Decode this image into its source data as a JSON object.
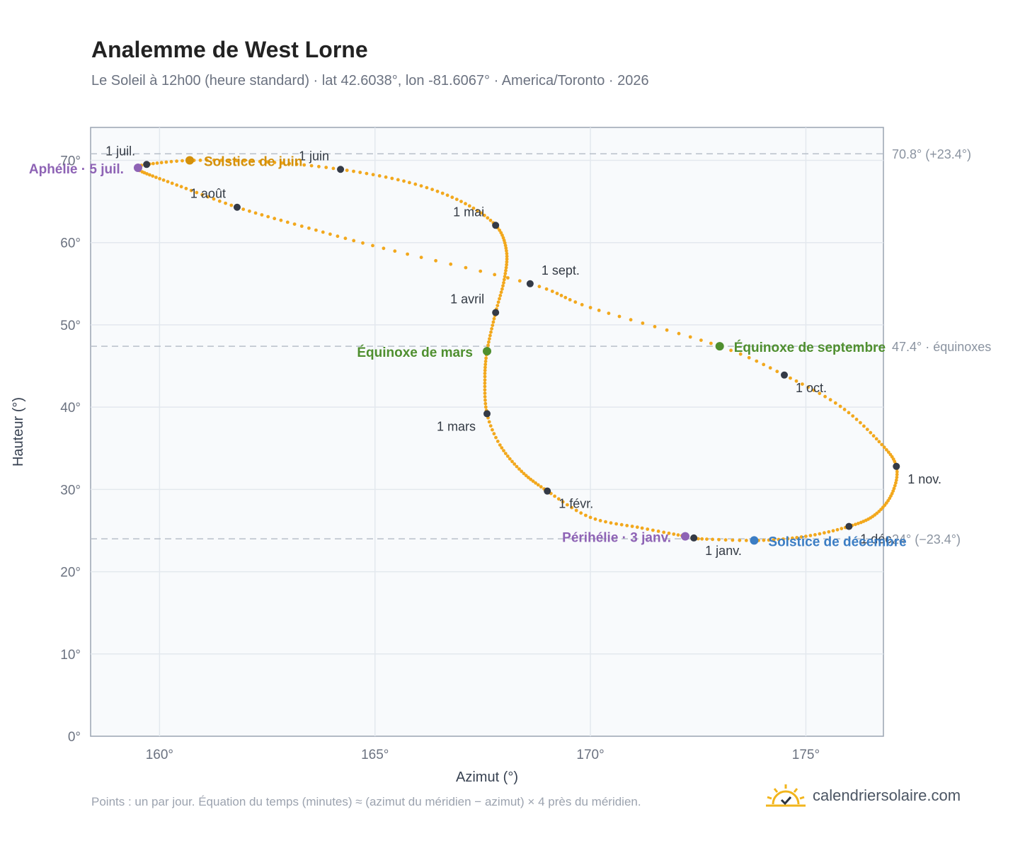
{
  "header": {
    "title": "Analemme de West Lorne",
    "subtitle": "Le Soleil à 12h00 (heure standard) · lat 42.6038°, lon -81.6067° · America/Toronto · 2026"
  },
  "footer": {
    "note": "Points : un par jour. Équation du temps (minutes) ≈ (azimut du méridien − azimut) × 4 près du méridien.",
    "brand": "calendriersolaire.com"
  },
  "colors": {
    "curve": "#f2a81d",
    "month_marker": "#343a46",
    "solstice_june": "#d4900a",
    "solstice_december": "#3b7dc4",
    "equinox": "#4f8f2f",
    "apsis": "#8e63b5",
    "reference_line": "#b8c0ca",
    "plot_background": "#f8fafc"
  },
  "chart_data": {
    "type": "scatter",
    "xlabel": "Azimut (°)",
    "ylabel": "Hauteur (°)",
    "xlim": [
      158.4,
      176.8
    ],
    "ylim": [
      0,
      74
    ],
    "xticks": [
      {
        "value": 160,
        "label": "160°"
      },
      {
        "value": 165,
        "label": "165°"
      },
      {
        "value": 170,
        "label": "170°"
      },
      {
        "value": 175,
        "label": "175°"
      }
    ],
    "yticks": [
      {
        "value": 0,
        "label": "0°"
      },
      {
        "value": 10,
        "label": "10°"
      },
      {
        "value": 20,
        "label": "20°"
      },
      {
        "value": 30,
        "label": "30°"
      },
      {
        "value": 40,
        "label": "40°"
      },
      {
        "value": 50,
        "label": "50°"
      },
      {
        "value": 60,
        "label": "60°"
      },
      {
        "value": 70,
        "label": "70°"
      }
    ],
    "grid": true,
    "points_per_year": 365,
    "path_keypoints": [
      {
        "doy": 1,
        "az": 172.4,
        "alt": 24.1
      },
      {
        "doy": 3,
        "az": 172.2,
        "alt": 24.3
      },
      {
        "doy": 12,
        "az": 171.2,
        "alt": 25.3
      },
      {
        "doy": 22,
        "az": 170.0,
        "alt": 26.6
      },
      {
        "doy": 32,
        "az": 169.0,
        "alt": 29.8
      },
      {
        "doy": 42,
        "az": 168.4,
        "alt": 32.2
      },
      {
        "doy": 52,
        "az": 167.9,
        "alt": 35.4
      },
      {
        "doy": 60,
        "az": 167.6,
        "alt": 39.2
      },
      {
        "doy": 70,
        "az": 167.55,
        "alt": 43.3
      },
      {
        "doy": 79,
        "az": 167.6,
        "alt": 46.8
      },
      {
        "doy": 91,
        "az": 167.8,
        "alt": 51.5
      },
      {
        "doy": 101,
        "az": 168.0,
        "alt": 55.5
      },
      {
        "doy": 111,
        "az": 168.05,
        "alt": 59.0
      },
      {
        "doy": 121,
        "az": 167.8,
        "alt": 62.1
      },
      {
        "doy": 131,
        "az": 167.0,
        "alt": 65.0
      },
      {
        "doy": 141,
        "az": 165.8,
        "alt": 67.3
      },
      {
        "doy": 152,
        "az": 164.2,
        "alt": 68.9
      },
      {
        "doy": 162,
        "az": 162.5,
        "alt": 69.8
      },
      {
        "doy": 172,
        "az": 160.8,
        "alt": 70.0
      },
      {
        "doy": 182,
        "az": 159.7,
        "alt": 69.5
      },
      {
        "doy": 186,
        "az": 159.5,
        "alt": 69.1
      },
      {
        "doy": 192,
        "az": 159.6,
        "alt": 68.6
      },
      {
        "doy": 202,
        "az": 160.4,
        "alt": 67.0
      },
      {
        "doy": 213,
        "az": 161.8,
        "alt": 64.3
      },
      {
        "doy": 223,
        "az": 163.3,
        "alt": 62.0
      },
      {
        "doy": 233,
        "az": 165.2,
        "alt": 59.3
      },
      {
        "doy": 244,
        "az": 168.6,
        "alt": 55.0
      },
      {
        "doy": 254,
        "az": 170.0,
        "alt": 52.1
      },
      {
        "doy": 266,
        "az": 173.0,
        "alt": 47.4
      },
      {
        "doy": 274,
        "az": 174.5,
        "alt": 43.9
      },
      {
        "doy": 284,
        "az": 175.8,
        "alt": 40.1
      },
      {
        "doy": 295,
        "az": 176.7,
        "alt": 35.8
      },
      {
        "doy": 305,
        "az": 177.1,
        "alt": 32.8
      },
      {
        "doy": 315,
        "az": 177.0,
        "alt": 29.5
      },
      {
        "doy": 325,
        "az": 176.6,
        "alt": 26.9
      },
      {
        "doy": 335,
        "az": 176.0,
        "alt": 25.5
      },
      {
        "doy": 345,
        "az": 175.0,
        "alt": 24.3
      },
      {
        "doy": 355,
        "az": 173.9,
        "alt": 23.8
      },
      {
        "doy": 365,
        "az": 172.5,
        "alt": 24.0
      }
    ],
    "month_markers": [
      {
        "label": "1 janv.",
        "az": 172.4,
        "alt": 24.1,
        "anchor": "start",
        "dx": 16,
        "dy": 24
      },
      {
        "label": "1 févr.",
        "az": 169.0,
        "alt": 29.8,
        "anchor": "start",
        "dx": 16,
        "dy": 24
      },
      {
        "label": "1 mars",
        "az": 167.6,
        "alt": 39.2,
        "anchor": "end",
        "dx": -16,
        "dy": 24
      },
      {
        "label": "1 avril",
        "az": 167.8,
        "alt": 51.5,
        "anchor": "end",
        "dx": -16,
        "dy": -13
      },
      {
        "label": "1 mai",
        "az": 167.8,
        "alt": 62.1,
        "anchor": "end",
        "dx": -16,
        "dy": -13
      },
      {
        "label": "1 juin",
        "az": 164.2,
        "alt": 68.9,
        "anchor": "end",
        "dx": -16,
        "dy": -13
      },
      {
        "label": "1 juil.",
        "az": 159.7,
        "alt": 69.5,
        "anchor": "end",
        "dx": -16,
        "dy": -13
      },
      {
        "label": "1 août",
        "az": 161.8,
        "alt": 64.3,
        "anchor": "end",
        "dx": -16,
        "dy": -13
      },
      {
        "label": "1 sept.",
        "az": 168.6,
        "alt": 55.0,
        "anchor": "start",
        "dx": 16,
        "dy": -13
      },
      {
        "label": "1 oct.",
        "az": 174.5,
        "alt": 43.9,
        "anchor": "start",
        "dx": 16,
        "dy": 24
      },
      {
        "label": "1 nov.",
        "az": 177.1,
        "alt": 32.8,
        "anchor": "start",
        "dx": 16,
        "dy": 24
      },
      {
        "label": "1 déc.",
        "az": 176.0,
        "alt": 25.5,
        "anchor": "start",
        "dx": 16,
        "dy": 24
      }
    ],
    "special_points": [
      {
        "label": "Solstice de juin",
        "az": 160.7,
        "alt": 70.0,
        "color_key": "solstice_june",
        "anchor": "start",
        "dx": 20,
        "dy": 8
      },
      {
        "label": "Solstice de décembre",
        "az": 173.8,
        "alt": 23.8,
        "color_key": "solstice_december",
        "anchor": "start",
        "dx": 20,
        "dy": 8
      },
      {
        "label": "Équinoxe de mars",
        "az": 167.6,
        "alt": 46.8,
        "color_key": "equinox",
        "anchor": "end",
        "dx": -20,
        "dy": 8
      },
      {
        "label": "Équinoxe de septembre",
        "az": 173.0,
        "alt": 47.4,
        "color_key": "equinox",
        "anchor": "start",
        "dx": 20,
        "dy": 8
      },
      {
        "label": "Aphélie · 5 juil.",
        "az": 159.5,
        "alt": 69.1,
        "color_key": "apsis",
        "anchor": "end",
        "dx": -20,
        "dy": 8
      },
      {
        "label": "Périhélie · 3 janv.",
        "az": 172.2,
        "alt": 24.3,
        "color_key": "apsis",
        "anchor": "end",
        "dx": -20,
        "dy": 8
      }
    ],
    "reference_lines": [
      {
        "alt": 70.8,
        "label": "70.8° (+23.4°)"
      },
      {
        "alt": 47.4,
        "label": "47.4° · équinoxes"
      },
      {
        "alt": 24.0,
        "label": "24° (−23.4°)"
      }
    ]
  }
}
